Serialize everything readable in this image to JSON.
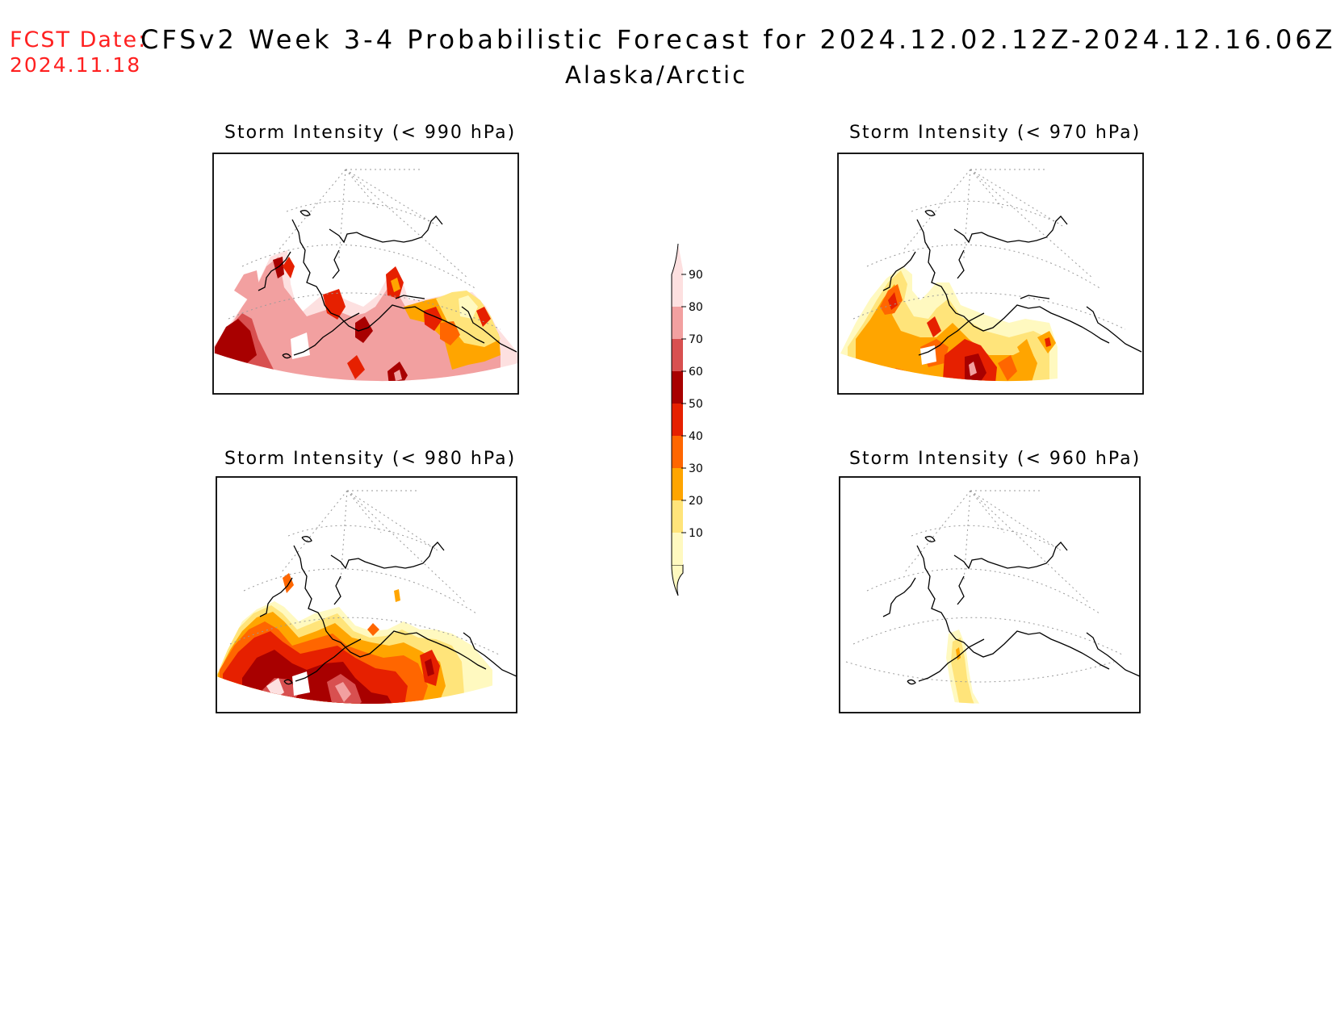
{
  "header": {
    "fcst_label": "FCST Date:",
    "fcst_date": "2024.11.18",
    "title": "CFSv2 Week 3-4 Probabilistic Forecast for 2024.12.02.12Z-2024.12.16.06Z",
    "region": "Alaska/Arctic"
  },
  "panels": [
    {
      "id": "p990",
      "title": "Storm Intensity (< 990 hPa)"
    },
    {
      "id": "p970",
      "title": "Storm Intensity (< 970 hPa)"
    },
    {
      "id": "p980",
      "title": "Storm Intensity (< 980 hPa)"
    },
    {
      "id": "p960",
      "title": "Storm Intensity (< 960 hPa)"
    }
  ],
  "colorbar": {
    "levels": [
      "10",
      "20",
      "30",
      "40",
      "50",
      "60",
      "70",
      "80",
      "90"
    ],
    "colors": [
      "#fff9c0",
      "#ffe47a",
      "#ffa500",
      "#ff6600",
      "#e62000",
      "#a80000",
      "#d85050",
      "#f2a0a0",
      "#fde0e0"
    ]
  }
}
